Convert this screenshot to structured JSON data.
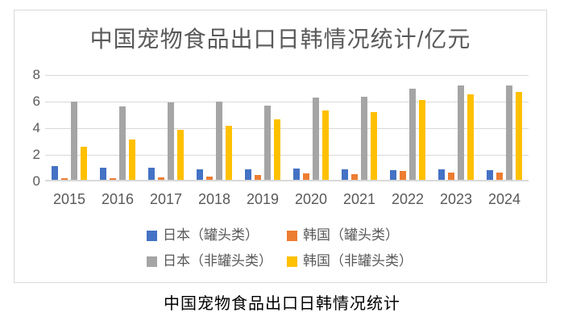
{
  "figure": {
    "caption": "中国宠物食品出口日韩情况统计"
  },
  "chart_data": {
    "type": "bar",
    "title": "中国宠物食品出口日韩情况统计/亿元",
    "categories": [
      "2015",
      "2016",
      "2017",
      "2018",
      "2019",
      "2020",
      "2021",
      "2022",
      "2023",
      "2024"
    ],
    "series": [
      {
        "name": "日本（罐头类）",
        "color": "#4472C4",
        "values": [
          1.05,
          0.9,
          0.9,
          0.8,
          0.8,
          0.85,
          0.8,
          0.75,
          0.8,
          0.75
        ]
      },
      {
        "name": "韩国（罐头类）",
        "color": "#ED7D31",
        "values": [
          0.1,
          0.15,
          0.2,
          0.25,
          0.35,
          0.5,
          0.45,
          0.65,
          0.55,
          0.55
        ]
      },
      {
        "name": "日本（非罐头类）",
        "color": "#A5A5A5",
        "values": [
          5.85,
          5.5,
          5.8,
          5.85,
          5.6,
          6.2,
          6.25,
          6.85,
          7.1,
          7.1
        ]
      },
      {
        "name": "韩国（非罐头类）",
        "color": "#FFC000",
        "values": [
          2.5,
          3.05,
          3.75,
          4.05,
          4.55,
          5.2,
          5.1,
          6.0,
          6.45,
          6.6
        ]
      }
    ],
    "xlabel": "",
    "ylabel": "",
    "ylim": [
      0,
      8
    ],
    "yticks": [
      0,
      2,
      4,
      6,
      8
    ],
    "grid": true,
    "legend_position": "bottom"
  },
  "colors": {
    "grid": "#D9D9D9",
    "axis": "#D9D9D9",
    "border": "#D9D9D9",
    "label_text": "#595959",
    "caption_text": "#000000"
  }
}
